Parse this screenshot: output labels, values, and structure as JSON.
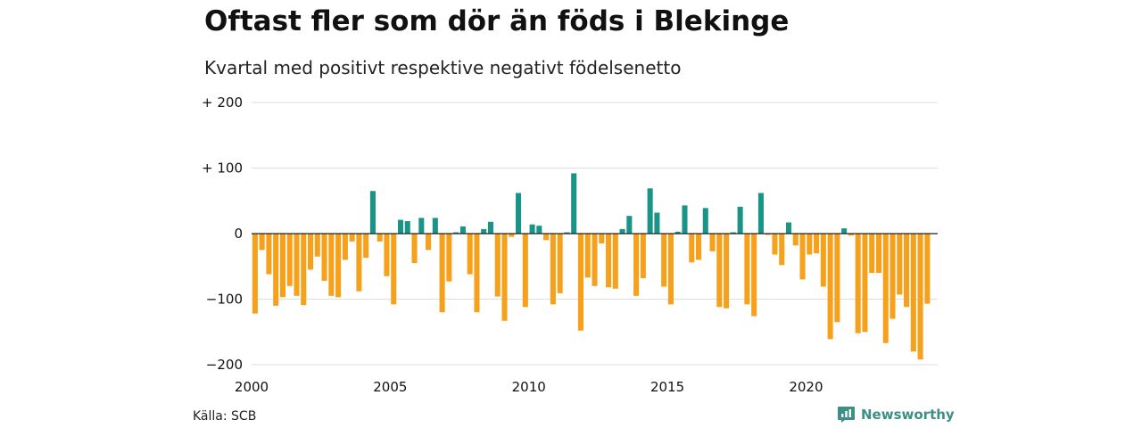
{
  "title": "Oftast fler som dör än föds i Blekinge",
  "subtitle": "Kvartal med positivt respektive negativt födelsenetto",
  "source": "Källa: SCB",
  "brand": "Newsworthy",
  "colors": {
    "positive": "#1a9487",
    "negative": "#f5a11c",
    "grid": "#dddddd",
    "zero": "#222222",
    "brand": "#3b8f84"
  },
  "chart_data": {
    "type": "bar",
    "title": "Oftast fler som dör än föds i Blekinge",
    "subtitle": "Kvartal med positivt respektive negativt födelsenetto",
    "xlabel": "",
    "ylabel": "",
    "ylim": [
      -200,
      200
    ],
    "xlim": [
      2000,
      2024.75
    ],
    "grid": true,
    "y_ticks": [
      {
        "value": 200,
        "label": "+ 200"
      },
      {
        "value": 100,
        "label": "+ 100"
      },
      {
        "value": 0,
        "label": "0"
      },
      {
        "value": -100,
        "label": "−100"
      },
      {
        "value": -200,
        "label": "−200"
      }
    ],
    "x_ticks": [
      {
        "value": 2000,
        "label": "2000"
      },
      {
        "value": 2005,
        "label": "2005"
      },
      {
        "value": 2010,
        "label": "2010"
      },
      {
        "value": 2015,
        "label": "2015"
      },
      {
        "value": 2020,
        "label": "2020"
      }
    ],
    "start_year": 2000,
    "start_quarter": 1,
    "values": [
      -122,
      -25,
      -62,
      -110,
      -97,
      -80,
      -95,
      -109,
      -55,
      -35,
      -72,
      -95,
      -97,
      -40,
      -12,
      -88,
      -37,
      65,
      -12,
      -65,
      -108,
      21,
      19,
      -45,
      24,
      -25,
      24,
      -120,
      -73,
      2,
      11,
      -62,
      -120,
      7,
      18,
      -96,
      -133,
      -5,
      62,
      -112,
      14,
      12,
      -10,
      -108,
      -91,
      2,
      92,
      -148,
      -67,
      -80,
      -15,
      -82,
      -84,
      7,
      27,
      -95,
      -68,
      69,
      32,
      -81,
      -108,
      3,
      43,
      -44,
      -40,
      39,
      -27,
      -112,
      -114,
      2,
      41,
      -108,
      -126,
      62,
      -2,
      -32,
      -48,
      17,
      -18,
      -70,
      -32,
      -30,
      -81,
      -161,
      -135,
      8,
      -3,
      -152,
      -150,
      -60,
      -60,
      -167,
      -130,
      -93,
      -112,
      -180,
      -192,
      -107
    ]
  }
}
